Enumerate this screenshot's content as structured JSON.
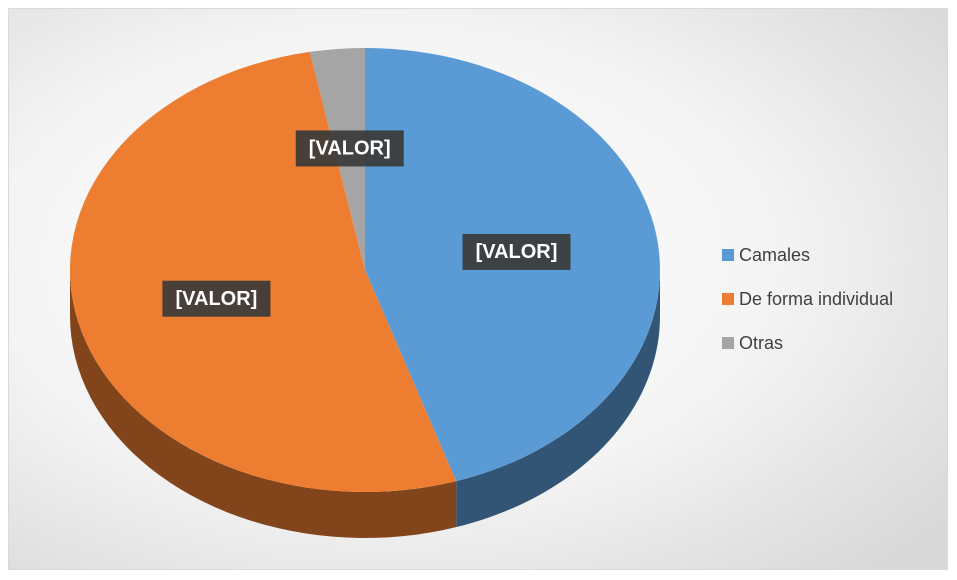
{
  "chart_data": {
    "type": "pie",
    "categories": [
      "Camales",
      "De forma individual",
      "Otras"
    ],
    "values": [
      45,
      52,
      3
    ],
    "value_labels": [
      "[VALOR]",
      "[VALOR]",
      "[VALOR]"
    ],
    "colors": [
      "#5b9bd5",
      "#ed7d31",
      "#a5a5a5"
    ],
    "legend": "right"
  }
}
